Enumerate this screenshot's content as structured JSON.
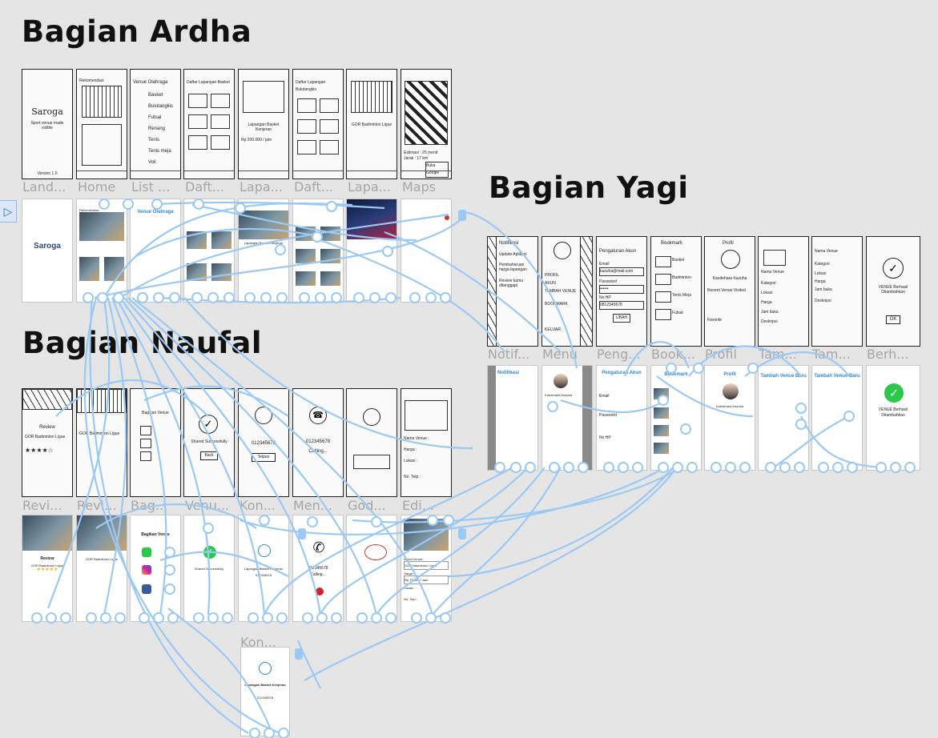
{
  "sections": {
    "ardha": "Bagian Ardha",
    "yagi": "Bagian Yagi",
    "naufal": "Bagian Naufal"
  },
  "labels": {
    "a1": "Land...",
    "a2": "Home",
    "a3": "List ...",
    "a4": "Daft...",
    "a5": "Lapa...",
    "a6": "Daft...",
    "a7": "Lapa...",
    "a8": "Maps",
    "y1": "Notif...",
    "y2": "Menu",
    "y3": "Peng...",
    "y4": "Book...",
    "y5": "Profil",
    "y6": "Tam...",
    "y7": "Tam...",
    "y8": "Berh...",
    "n1": "Revi...",
    "n2": "Revi...",
    "n3": "Bag...",
    "n4": "Venu...",
    "n5": "Kon...",
    "n6": "Men...",
    "n7": "God...",
    "n8": "Edi...",
    "extra": "Kon..."
  },
  "screens": {
    "landing_logo": "Saroga",
    "landing_tag": "Sport venue made visible",
    "landing_version": "Version 1.0",
    "home_title": "Rekomendasi",
    "list_title": "Venue Olahraga",
    "list_items": [
      "Basket",
      "Bulutangkis",
      "Futsal",
      "Renang",
      "Tenis",
      "Tenis meja",
      "Voli"
    ],
    "daftar_title": "Daftar Lapangan Basket",
    "lapangan_name": "Lapangan Basket Kenjeran",
    "lapangan_price": "Rp 200.000 / jam",
    "daftar_bulu": "Daftar Lapangan Bulutangkis",
    "gor_name": "GOR Badminton Ligue",
    "maps_estimasi": "Estimasi : 25 menit",
    "maps_jarak": "Jarak : 17 km",
    "maps_button": "Buka Google",
    "notif_title": "Notifikasi",
    "notif_items": [
      "Update Aplikasi",
      "Pembaharuan harga lapangan",
      "Review kamu ditanggapi"
    ],
    "menu_items": [
      "PROFIL",
      "AKUN",
      "TAMBAH VENUE",
      "BOOKMARK",
      "KELUAR"
    ],
    "menu_user": "Kaedehara Kazuha",
    "peng_title": "Pengaturan Akun",
    "peng_fields": [
      "Email",
      "Password",
      "No HP"
    ],
    "peng_values": [
      "kazuha@mail.com",
      "••••••",
      "0812345678"
    ],
    "peng_button": "UBAH",
    "book_title": "Bookmark",
    "book_items": [
      "Basket",
      "Badminton",
      "Tenis Meja",
      "Futsal"
    ],
    "profil_title": "Profil",
    "profil_name": "Kaedehara Kazuha",
    "profil_recent": "Recent Venue Visited",
    "profil_fav": "Favorite",
    "tambah_title": "Tambah Venue Baru",
    "tambah_fields": [
      "Nama Venue",
      "Kategori",
      "Lokasi",
      "Harga",
      "Jam buka",
      "Deskripsi"
    ],
    "berhasil_title": "VENUE Berhasil Ditambahkan",
    "berhasil_ok": "OK",
    "review_title": "Review",
    "review_gor": "GOR Badminton Ligue",
    "bagikan_title": "Bagikan Venue",
    "shared_text": "Shared Successfully",
    "shared_back": "Back",
    "kontak_name": "Lapangan Basket Kenjeran",
    "kontak_phone": "012345678",
    "kontak_call": "Telpon",
    "calling_text": "Calling...",
    "edit_fields": [
      "Nama Venue :",
      "Harga :",
      "Lokasi :",
      "No. Telp :"
    ],
    "edit_values": [
      "GOR Badminton Ligue",
      "Rp 75.000 / Jam",
      "",
      ""
    ]
  },
  "colors": {
    "wire": "#9bc9f5",
    "accent": "#2a8ad8",
    "background": "#e5e5e5"
  }
}
